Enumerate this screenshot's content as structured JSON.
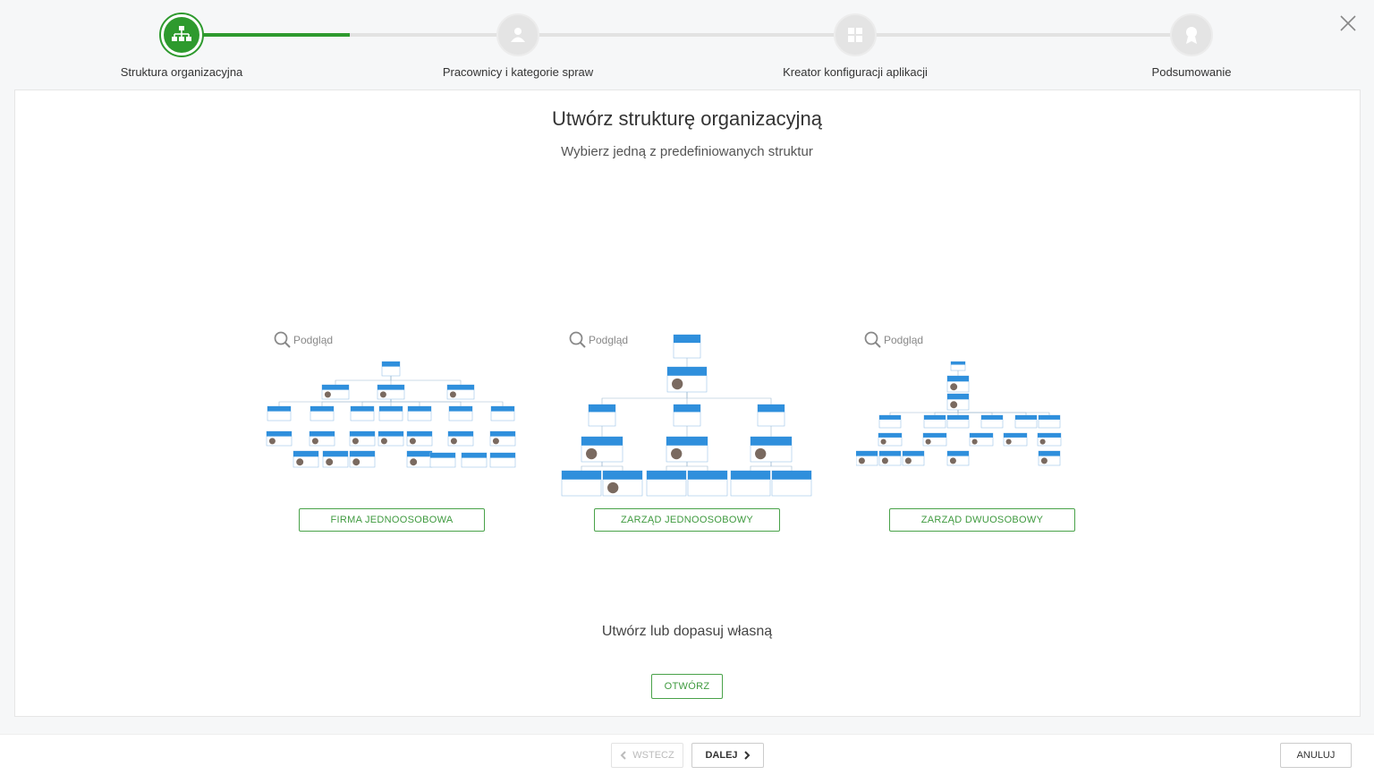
{
  "steps": [
    "Struktura organizacyjna",
    "Pracownicy i kategorie spraw",
    "Kreator konfiguracji aplikacji",
    "Podsumowanie"
  ],
  "title": "Utwórz strukturę organizacyjną",
  "subtitle": "Wybierz jedną z predefiniowanych struktur",
  "options": [
    {
      "preview": "Podgląd",
      "button": "FIRMA JEDNOOSOBOWA"
    },
    {
      "preview": "Podgląd",
      "button": "ZARZĄD JEDNOOSOBOWY"
    },
    {
      "preview": "Podgląd",
      "button": "ZARZĄD DWUOSOBOWY"
    }
  ],
  "custom": {
    "text": "Utwórz lub dopasuj własną",
    "button": "OTWÓRZ"
  },
  "footer": {
    "back": "WSTECZ",
    "next": "DALEJ",
    "cancel": "ANULUJ"
  }
}
